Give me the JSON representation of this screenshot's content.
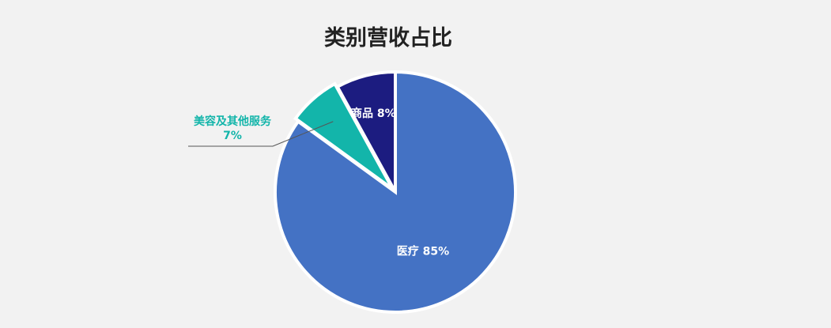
{
  "chart_data": {
    "type": "pie",
    "title": "类别营收占比",
    "slices": [
      {
        "name": "医疗",
        "value": 85,
        "value_label": "85%",
        "color": "#4472c4"
      },
      {
        "name": "美容及其他服务",
        "value": 7,
        "value_label": "7%",
        "color": "#13b5aa"
      },
      {
        "name": "商品",
        "value": 8,
        "value_label": "8%",
        "color": "#1c1c80"
      }
    ],
    "label_colors": {
      "inside": "#ffffff",
      "outside": "#13b5aa"
    }
  }
}
